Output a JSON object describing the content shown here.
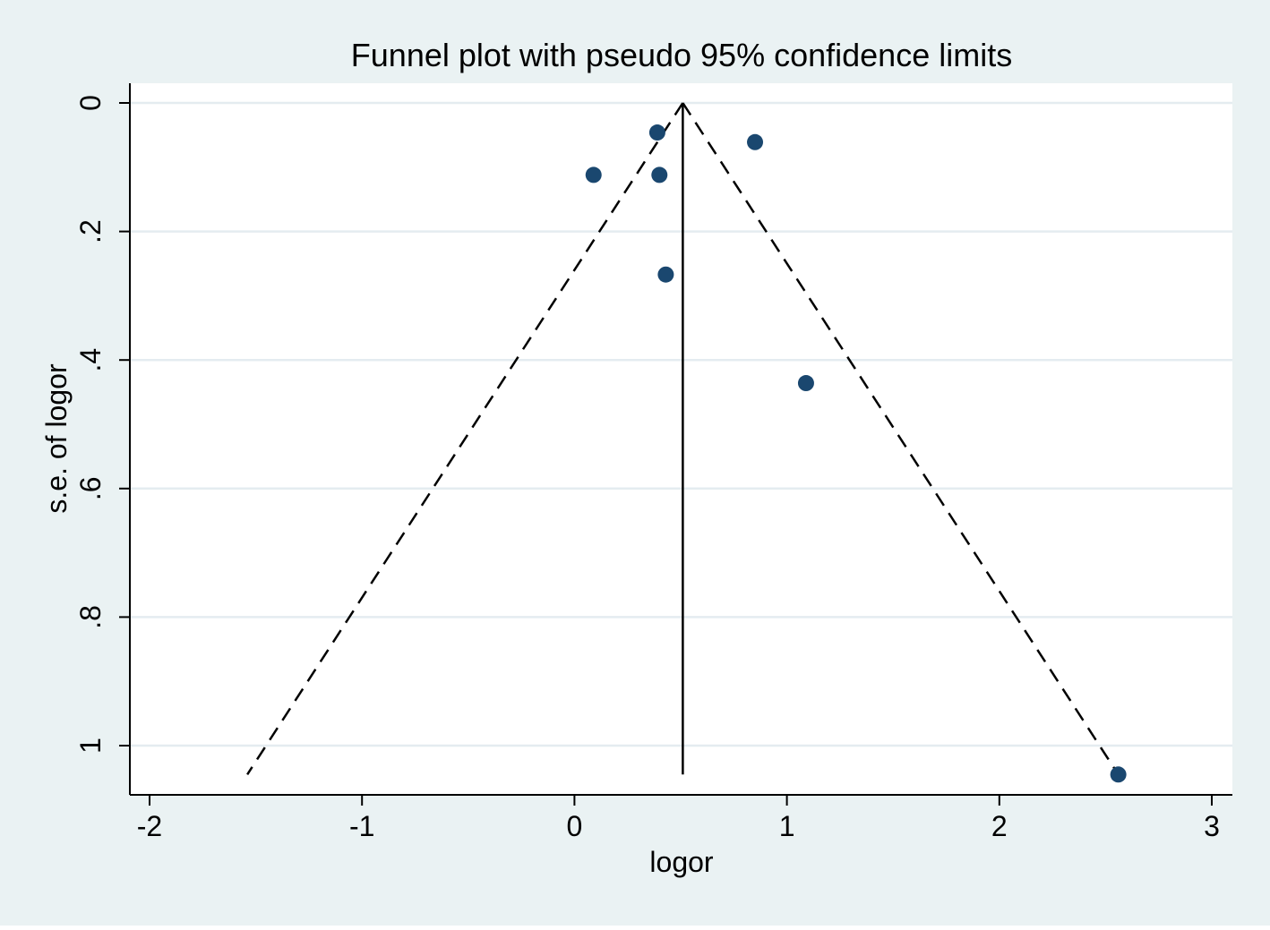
{
  "chart_data": {
    "type": "scatter",
    "title": "Funnel plot with pseudo 95% confidence limits",
    "xlabel": "logor",
    "ylabel": "s.e. of logor",
    "xlim": [
      -2.1,
      3.1
    ],
    "ylim": [
      0,
      1.05
    ],
    "y_reversed": true,
    "grid": true,
    "x_ticks": [
      {
        "value": -2,
        "label": "-2"
      },
      {
        "value": -1,
        "label": "-1"
      },
      {
        "value": 0,
        "label": "0"
      },
      {
        "value": 1,
        "label": "1"
      },
      {
        "value": 2,
        "label": "2"
      },
      {
        "value": 3,
        "label": "3"
      }
    ],
    "y_ticks": [
      {
        "value": 0,
        "label": "0"
      },
      {
        "value": 0.2,
        "label": ".2"
      },
      {
        "value": 0.4,
        "label": ".4"
      },
      {
        "value": 0.6,
        "label": ".6"
      },
      {
        "value": 0.8,
        "label": ".8"
      },
      {
        "value": 1,
        "label": "1"
      }
    ],
    "points": [
      {
        "x": 0.39,
        "y": 0.046
      },
      {
        "x": 0.85,
        "y": 0.061
      },
      {
        "x": 0.09,
        "y": 0.112
      },
      {
        "x": 0.4,
        "y": 0.112
      },
      {
        "x": 0.43,
        "y": 0.267
      },
      {
        "x": 1.09,
        "y": 0.436
      },
      {
        "x": 2.56,
        "y": 1.045
      }
    ],
    "pooled_estimate": 0.51,
    "ci_limits": {
      "apex": {
        "x": 0.51,
        "y": 0
      },
      "left_end": {
        "x": -1.54,
        "y": 1.045
      },
      "right_end": {
        "x": 2.56,
        "y": 1.045
      }
    },
    "colors": {
      "background": "#eaf2f3",
      "plot_area": "#ffffff",
      "grid": "#e4ecf0",
      "marker": "#1a476f",
      "line": "#000000"
    }
  }
}
